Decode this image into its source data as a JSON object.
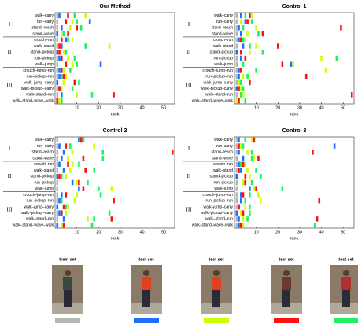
{
  "chart_data": [
    {
      "type": "rank",
      "title": "Our Method",
      "groups": [
        {
          "label": "I",
          "categories": [
            "walk–carry",
            "run–carry",
            "stand–reach",
            "stand–wave"
          ]
        },
        {
          "label": "II",
          "categories": [
            "crouch–run",
            "walk–stand",
            "stand–pickup",
            "run–pickup",
            "walk–jump"
          ]
        },
        {
          "label": "III",
          "categories": [
            "crouch–jump–run",
            "run–pickup–run",
            "walk–jump–carry",
            "walk–pickup–carry",
            "walk–stand–run",
            "walk–stand–wave–walk"
          ]
        }
      ],
      "series": [
        {
          "values": [
            1,
            1,
            1,
            1,
            1,
            1,
            1,
            1,
            1,
            1,
            1,
            1,
            1,
            1,
            1
          ]
        },
        {
          "values": [
            2,
            16,
            3,
            1,
            5,
            3,
            1,
            2,
            21,
            2,
            2,
            1,
            2,
            3,
            1
          ]
        },
        {
          "values": [
            14,
            8,
            7,
            3,
            8,
            25,
            4,
            6,
            8,
            4,
            5,
            4,
            3,
            10,
            2
          ]
        },
        {
          "values": [
            6,
            5,
            10,
            6,
            3,
            2,
            2,
            3,
            5,
            3,
            4,
            9,
            2,
            27,
            1
          ]
        },
        {
          "values": [
            9,
            10,
            12,
            4,
            6,
            14,
            5,
            9,
            10,
            7,
            3,
            11,
            8,
            17,
            3
          ]
        }
      ],
      "xlabel": "rank",
      "xlim": [
        0,
        55
      ],
      "xticks": [
        10,
        20,
        30,
        40,
        50
      ]
    },
    {
      "type": "rank",
      "title": "Control 1",
      "groups": [
        {
          "label": "I",
          "categories": [
            "walk–carry",
            "run–carry",
            "stand–reach",
            "stand–wave"
          ]
        },
        {
          "label": "II",
          "categories": [
            "crouch–run",
            "walk–stand",
            "stand–pickup",
            "run–pickup",
            "walk–jump"
          ]
        },
        {
          "label": "III",
          "categories": [
            "crouch–jump–run",
            "run–pickup–run",
            "walk–jump–carry",
            "walk–pickup–carry",
            "walk–stand–run",
            "walk–stand–wave–walk"
          ]
        }
      ],
      "series": [
        {
          "values": [
            1,
            1,
            1,
            1,
            1,
            1,
            1,
            1,
            1,
            1,
            1,
            1,
            1,
            1,
            1
          ]
        },
        {
          "values": [
            3,
            5,
            2,
            3,
            2,
            4,
            1,
            3,
            26,
            2,
            2,
            2,
            1,
            3,
            1
          ]
        },
        {
          "values": [
            8,
            3,
            10,
            6,
            5,
            10,
            7,
            40,
            27,
            42,
            4,
            2,
            3,
            4,
            1
          ]
        },
        {
          "values": [
            7,
            6,
            49,
            13,
            3,
            20,
            3,
            5,
            22,
            3,
            33,
            7,
            2,
            54,
            2
          ]
        },
        {
          "values": [
            5,
            8,
            4,
            11,
            4,
            7,
            13,
            47,
            4,
            10,
            6,
            3,
            4,
            3,
            5
          ]
        }
      ],
      "xlabel": "rank",
      "xlim": [
        0,
        55
      ],
      "xticks": [
        10,
        20,
        30,
        40,
        50
      ]
    },
    {
      "type": "rank",
      "title": "Control 2",
      "groups": [
        {
          "label": "I",
          "categories": [
            "walk–carry",
            "run–carry",
            "stand–reach",
            "stand–wave"
          ]
        },
        {
          "label": "II",
          "categories": [
            "crouch–run",
            "walk–stand",
            "stand–pickup",
            "run–pickup",
            "walk–jump"
          ]
        },
        {
          "label": "III",
          "categories": [
            "crouch–jump–run",
            "run–pickup–run",
            "walk–jump–carry",
            "walk–pickup–carry",
            "walk–stand–run",
            "walk–stand–wave–walk"
          ]
        }
      ],
      "series": [
        {
          "values": [
            1,
            1,
            1,
            1,
            1,
            1,
            1,
            1,
            1,
            1,
            1,
            1,
            1,
            1,
            1
          ]
        },
        {
          "values": [
            11,
            2,
            4,
            3,
            2,
            4,
            1,
            8,
            11,
            3,
            2,
            1,
            2,
            4,
            1
          ]
        },
        {
          "values": [
            12,
            18,
            8,
            6,
            8,
            7,
            5,
            10,
            26,
            10,
            9,
            6,
            5,
            15,
            3
          ]
        },
        {
          "values": [
            12,
            5,
            54,
            13,
            6,
            14,
            2,
            11,
            13,
            5,
            27,
            4,
            3,
            26,
            4
          ]
        },
        {
          "values": [
            13,
            7,
            22,
            22,
            11,
            18,
            3,
            15,
            20,
            21,
            3,
            5,
            25,
            18,
            17
          ]
        }
      ],
      "xlabel": "rank",
      "xlim": [
        0,
        55
      ],
      "xticks": [
        10,
        20,
        30,
        40,
        50
      ]
    },
    {
      "type": "rank",
      "title": "Control 3",
      "groups": [
        {
          "label": "I",
          "categories": [
            "walk–carry",
            "run–carry",
            "stand–reach",
            "stand–wave"
          ]
        },
        {
          "label": "II",
          "categories": [
            "crouch–run",
            "walk–stand",
            "stand–pickup",
            "run–pickup",
            "walk–jump"
          ]
        },
        {
          "label": "III",
          "categories": [
            "crouch–jump–run",
            "run–pickup–run",
            "walk–jump–carry",
            "walk–pickup–carry",
            "walk–stand–run",
            "walk–stand–wave–walk"
          ]
        }
      ],
      "series": [
        {
          "values": [
            1,
            1,
            1,
            1,
            1,
            1,
            1,
            1,
            1,
            1,
            1,
            1,
            1,
            1,
            1
          ]
        },
        {
          "values": [
            2,
            46,
            2,
            4,
            2,
            3,
            1,
            4,
            7,
            3,
            3,
            2,
            1,
            2,
            2
          ]
        },
        {
          "values": [
            8,
            3,
            6,
            9,
            5,
            6,
            7,
            4,
            9,
            11,
            12,
            5,
            3,
            4,
            4
          ]
        },
        {
          "values": [
            9,
            2,
            36,
            11,
            4,
            2,
            5,
            5,
            10,
            4,
            39,
            2,
            4,
            38,
            3
          ]
        },
        {
          "values": [
            5,
            4,
            8,
            8,
            3,
            10,
            12,
            8,
            22,
            7,
            5,
            7,
            7,
            6,
            37
          ]
        }
      ],
      "xlabel": "rank",
      "xlim": [
        0,
        55
      ],
      "xticks": [
        10,
        20,
        30,
        40,
        50
      ]
    }
  ],
  "legend": [
    {
      "label": "train set",
      "color": "#b4b8b4"
    },
    {
      "label": "test set",
      "color": "#1f6fff"
    },
    {
      "label": "test set",
      "color": "#ccff00"
    },
    {
      "label": "test set",
      "color": "#ff1010"
    },
    {
      "label": "test set",
      "color": "#22ee66"
    }
  ]
}
